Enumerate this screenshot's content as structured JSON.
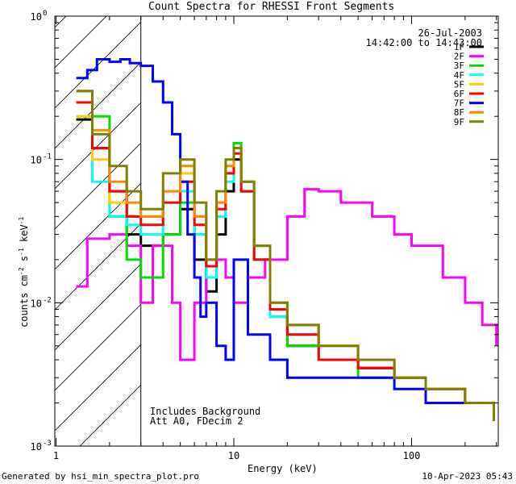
{
  "chart_data": {
    "type": "line",
    "title": "Count Spectra for RHESSI Front Segments",
    "xlabel": "Energy (keV)",
    "ylabel": "counts cm-2 s-1 keV-1",
    "xscale": "log",
    "yscale": "log",
    "xlim": [
      1.2,
      300
    ],
    "ylim": [
      0.001,
      1.0
    ],
    "x_tick_labels": [
      "1",
      "10",
      "100"
    ],
    "y_tick_labels": [
      "10-3",
      "10-2",
      "10-1",
      "100"
    ],
    "shaded_region": {
      "description": "hatched",
      "x_range": [
        1.2,
        3.0
      ]
    },
    "date": "26-Jul-2003",
    "time_range": "14:42:00 to 14:43:00",
    "annotations": [
      "Includes Background",
      "Att A0, FDecim 2"
    ],
    "series": [
      {
        "name": "1F",
        "color": "#000000",
        "points": [
          [
            1.3,
            0.19
          ],
          [
            1.6,
            0.12
          ],
          [
            2.0,
            0.06
          ],
          [
            2.5,
            0.03
          ],
          [
            3.0,
            0.025
          ],
          [
            4.0,
            0.03
          ],
          [
            5.0,
            0.045
          ],
          [
            6.0,
            0.02
          ],
          [
            7.0,
            0.012
          ],
          [
            8.0,
            0.03
          ],
          [
            9.0,
            0.06
          ],
          [
            10.0,
            0.1
          ],
          [
            11.0,
            0.06
          ],
          [
            13.0,
            0.02
          ],
          [
            16.0,
            0.008
          ],
          [
            20.0,
            0.005
          ],
          [
            30.0,
            0.004
          ],
          [
            50.0,
            0.0035
          ],
          [
            80.0,
            0.003
          ],
          [
            120.0,
            0.0025
          ],
          [
            200.0,
            0.002
          ],
          [
            290.0,
            0.0015
          ]
        ]
      },
      {
        "name": "2F",
        "color": "#ff00ff",
        "points": [
          [
            1.3,
            0.013
          ],
          [
            1.5,
            0.028
          ],
          [
            2.0,
            0.03
          ],
          [
            2.5,
            0.025
          ],
          [
            3.0,
            0.01
          ],
          [
            3.5,
            0.025
          ],
          [
            4.5,
            0.01
          ],
          [
            5.0,
            0.004
          ],
          [
            6.0,
            0.01
          ],
          [
            7.0,
            0.015
          ],
          [
            8.0,
            0.02
          ],
          [
            9.0,
            0.015
          ],
          [
            10.0,
            0.01
          ],
          [
            12.0,
            0.015
          ],
          [
            15.0,
            0.02
          ],
          [
            20.0,
            0.04
          ],
          [
            25.0,
            0.062
          ],
          [
            30.0,
            0.06
          ],
          [
            40.0,
            0.05
          ],
          [
            50.0,
            0.05
          ],
          [
            60.0,
            0.04
          ],
          [
            80.0,
            0.03
          ],
          [
            100.0,
            0.025
          ],
          [
            150.0,
            0.015
          ],
          [
            200.0,
            0.01
          ],
          [
            250.0,
            0.007
          ],
          [
            300.0,
            0.005
          ]
        ]
      },
      {
        "name": "3F",
        "color": "#00dd00",
        "points": [
          [
            1.3,
            0.3
          ],
          [
            1.6,
            0.2
          ],
          [
            2.0,
            0.04
          ],
          [
            2.5,
            0.02
          ],
          [
            3.0,
            0.015
          ],
          [
            4.0,
            0.03
          ],
          [
            5.0,
            0.05
          ],
          [
            6.0,
            0.03
          ],
          [
            7.0,
            0.015
          ],
          [
            8.0,
            0.04
          ],
          [
            9.0,
            0.08
          ],
          [
            10.0,
            0.13
          ],
          [
            11.0,
            0.06
          ],
          [
            13.0,
            0.02
          ],
          [
            16.0,
            0.008
          ],
          [
            20.0,
            0.005
          ],
          [
            30.0,
            0.004
          ],
          [
            50.0,
            0.003
          ],
          [
            80.0,
            0.003
          ],
          [
            120.0,
            0.0025
          ],
          [
            200.0,
            0.002
          ],
          [
            290.0,
            0.0015
          ]
        ]
      },
      {
        "name": "4F",
        "color": "#00ffff",
        "points": [
          [
            1.3,
            0.2
          ],
          [
            1.6,
            0.07
          ],
          [
            2.0,
            0.04
          ],
          [
            2.5,
            0.035
          ],
          [
            3.0,
            0.03
          ],
          [
            4.0,
            0.05
          ],
          [
            5.0,
            0.06
          ],
          [
            6.0,
            0.03
          ],
          [
            7.0,
            0.015
          ],
          [
            8.0,
            0.04
          ],
          [
            9.0,
            0.07
          ],
          [
            10.0,
            0.11
          ],
          [
            11.0,
            0.06
          ],
          [
            13.0,
            0.02
          ],
          [
            16.0,
            0.008
          ],
          [
            20.0,
            0.006
          ],
          [
            30.0,
            0.004
          ],
          [
            50.0,
            0.004
          ],
          [
            80.0,
            0.003
          ],
          [
            120.0,
            0.0025
          ],
          [
            200.0,
            0.002
          ],
          [
            290.0,
            0.0015
          ]
        ]
      },
      {
        "name": "5F",
        "color": "#ffcc00",
        "points": [
          [
            1.3,
            0.2
          ],
          [
            1.6,
            0.1
          ],
          [
            2.0,
            0.05
          ],
          [
            2.5,
            0.04
          ],
          [
            3.0,
            0.04
          ],
          [
            4.0,
            0.06
          ],
          [
            5.0,
            0.08
          ],
          [
            6.0,
            0.04
          ],
          [
            7.0,
            0.02
          ],
          [
            8.0,
            0.05
          ],
          [
            9.0,
            0.09
          ],
          [
            10.0,
            0.12
          ],
          [
            11.0,
            0.07
          ],
          [
            13.0,
            0.025
          ],
          [
            16.0,
            0.01
          ],
          [
            20.0,
            0.007
          ],
          [
            30.0,
            0.005
          ],
          [
            50.0,
            0.004
          ],
          [
            80.0,
            0.003
          ],
          [
            120.0,
            0.0025
          ],
          [
            200.0,
            0.002
          ],
          [
            290.0,
            0.0015
          ]
        ]
      },
      {
        "name": "6F",
        "color": "#ff0000",
        "points": [
          [
            1.3,
            0.25
          ],
          [
            1.6,
            0.12
          ],
          [
            2.0,
            0.06
          ],
          [
            2.5,
            0.04
          ],
          [
            3.0,
            0.035
          ],
          [
            4.0,
            0.05
          ],
          [
            5.0,
            0.07
          ],
          [
            6.0,
            0.035
          ],
          [
            7.0,
            0.018
          ],
          [
            8.0,
            0.045
          ],
          [
            9.0,
            0.08
          ],
          [
            10.0,
            0.11
          ],
          [
            11.0,
            0.06
          ],
          [
            13.0,
            0.02
          ],
          [
            16.0,
            0.009
          ],
          [
            20.0,
            0.006
          ],
          [
            30.0,
            0.004
          ],
          [
            50.0,
            0.0035
          ],
          [
            80.0,
            0.003
          ],
          [
            120.0,
            0.0025
          ],
          [
            200.0,
            0.002
          ],
          [
            290.0,
            0.0015
          ]
        ]
      },
      {
        "name": "7F",
        "color": "#0000ff",
        "points": [
          [
            1.3,
            0.37
          ],
          [
            1.5,
            0.42
          ],
          [
            1.7,
            0.5
          ],
          [
            2.0,
            0.48
          ],
          [
            2.3,
            0.5
          ],
          [
            2.6,
            0.47
          ],
          [
            3.0,
            0.45
          ],
          [
            3.5,
            0.35
          ],
          [
            4.0,
            0.25
          ],
          [
            4.5,
            0.15
          ],
          [
            5.0,
            0.07
          ],
          [
            5.5,
            0.03
          ],
          [
            6.0,
            0.015
          ],
          [
            6.5,
            0.008
          ],
          [
            7.0,
            0.01
          ],
          [
            8.0,
            0.005
          ],
          [
            9.0,
            0.004
          ],
          [
            10.0,
            0.02
          ],
          [
            12.0,
            0.006
          ],
          [
            16.0,
            0.004
          ],
          [
            20.0,
            0.003
          ],
          [
            30.0,
            0.003
          ],
          [
            50.0,
            0.003
          ],
          [
            80.0,
            0.0025
          ],
          [
            120.0,
            0.002
          ],
          [
            200.0,
            0.002
          ],
          [
            290.0,
            0.0015
          ]
        ]
      },
      {
        "name": "8F",
        "color": "#ff8800",
        "points": [
          [
            1.3,
            0.3
          ],
          [
            1.6,
            0.16
          ],
          [
            2.0,
            0.07
          ],
          [
            2.5,
            0.05
          ],
          [
            3.0,
            0.04
          ],
          [
            4.0,
            0.06
          ],
          [
            5.0,
            0.09
          ],
          [
            6.0,
            0.04
          ],
          [
            7.0,
            0.02
          ],
          [
            8.0,
            0.05
          ],
          [
            9.0,
            0.09
          ],
          [
            10.0,
            0.12
          ],
          [
            11.0,
            0.07
          ],
          [
            13.0,
            0.025
          ],
          [
            16.0,
            0.01
          ],
          [
            20.0,
            0.007
          ],
          [
            30.0,
            0.005
          ],
          [
            50.0,
            0.004
          ],
          [
            80.0,
            0.003
          ],
          [
            120.0,
            0.0025
          ],
          [
            200.0,
            0.002
          ],
          [
            290.0,
            0.0015
          ]
        ]
      },
      {
        "name": "9F",
        "color": "#808000",
        "points": [
          [
            1.3,
            0.3
          ],
          [
            1.6,
            0.15
          ],
          [
            2.0,
            0.09
          ],
          [
            2.5,
            0.06
          ],
          [
            3.0,
            0.045
          ],
          [
            4.0,
            0.08
          ],
          [
            5.0,
            0.1
          ],
          [
            6.0,
            0.05
          ],
          [
            7.0,
            0.02
          ],
          [
            8.0,
            0.06
          ],
          [
            9.0,
            0.1
          ],
          [
            10.0,
            0.12
          ],
          [
            11.0,
            0.07
          ],
          [
            13.0,
            0.025
          ],
          [
            16.0,
            0.01
          ],
          [
            20.0,
            0.007
          ],
          [
            30.0,
            0.005
          ],
          [
            50.0,
            0.004
          ],
          [
            80.0,
            0.003
          ],
          [
            120.0,
            0.0025
          ],
          [
            200.0,
            0.002
          ],
          [
            290.0,
            0.0015
          ]
        ]
      }
    ]
  },
  "footer": {
    "generated_by": "Generated by hsi_min_spectra_plot.pro",
    "timestamp": "10-Apr-2023 05:43"
  },
  "labels": {
    "y_tick_base": "10"
  }
}
